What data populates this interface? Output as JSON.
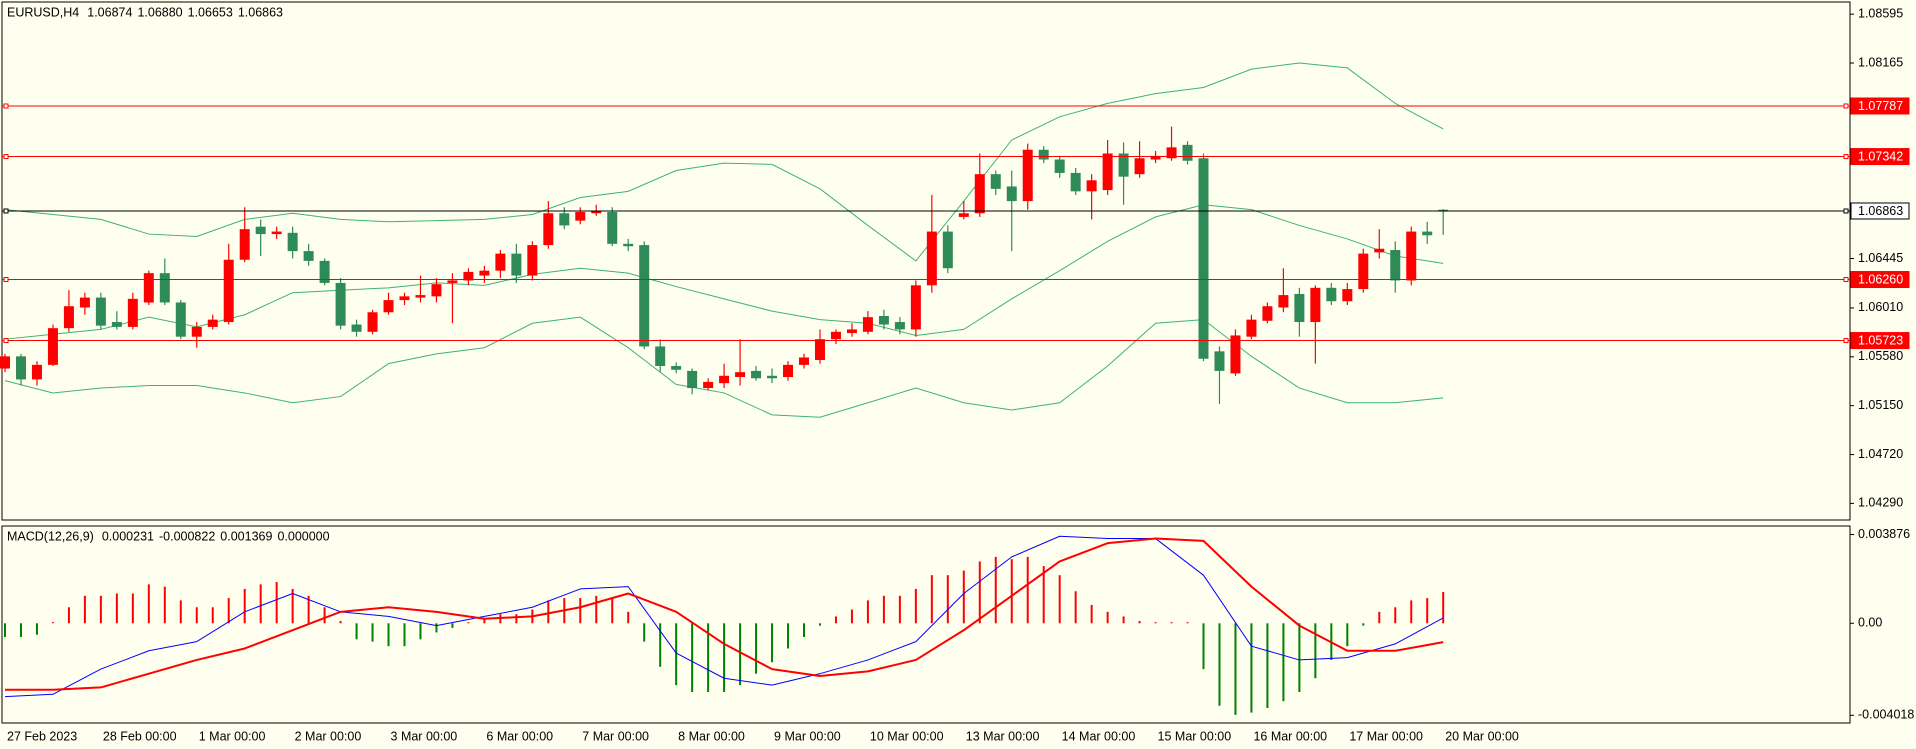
{
  "chart_data": [
    {
      "type": "candlestick",
      "title": "EURUSD,H4",
      "header_values": [
        "1.06874",
        "1.06880",
        "1.06653",
        "1.06863"
      ],
      "categories": [
        "27 Feb 2023",
        null,
        null,
        null,
        null,
        null,
        "28 Feb 00:00",
        null,
        null,
        null,
        null,
        null,
        "1 Mar 00:00",
        null,
        null,
        null,
        null,
        null,
        "2 Mar 00:00",
        null,
        null,
        null,
        null,
        null,
        "3 Mar 00:00",
        null,
        null,
        null,
        null,
        null,
        "6 Mar 00:00",
        null,
        null,
        null,
        null,
        null,
        "7 Mar 00:00",
        null,
        null,
        null,
        null,
        null,
        "8 Mar 00:00",
        null,
        null,
        null,
        null,
        null,
        "9 Mar 00:00",
        null,
        null,
        null,
        null,
        null,
        "10 Mar 00:00",
        null,
        null,
        null,
        null,
        null,
        "13 Mar 00:00",
        null,
        null,
        null,
        null,
        null,
        "14 Mar 00:00",
        null,
        null,
        null,
        null,
        null,
        "15 Mar 00:00",
        null,
        null,
        null,
        null,
        null,
        "16 Mar 00:00",
        null,
        null,
        null,
        null,
        null,
        "17 Mar 00:00",
        null,
        null,
        null,
        null,
        null,
        "20 Mar 00:00"
      ],
      "open": [
        1.05477,
        1.05584,
        1.05381,
        1.05509,
        1.05832,
        1.06014,
        1.06101,
        1.05886,
        1.05843,
        1.06058,
        1.06316,
        1.06058,
        1.05757,
        1.05843,
        1.05886,
        1.06434,
        1.06725,
        1.0666,
        1.06671,
        1.0651,
        1.06424,
        1.0623,
        1.05864,
        1.058,
        1.05972,
        1.06079,
        1.06101,
        1.06112,
        1.0623,
        1.06252,
        1.06295,
        1.06338,
        1.06488,
        1.06295,
        1.06563,
        1.06843,
        1.06778,
        1.06843,
        1.06854,
        1.06574,
        1.06563,
        1.05671,
        1.05499,
        1.05456,
        1.05305,
        1.05348,
        1.05402,
        1.05456,
        1.05413,
        1.05402,
        1.05509,
        1.05552,
        1.05735,
        1.05789,
        1.058,
        1.05939,
        1.05886,
        1.05821,
        1.06209,
        1.06682,
        1.06811,
        1.06843,
        1.07187,
        1.07079,
        1.0695,
        1.07402,
        1.07316,
        1.07198,
        1.07036,
        1.07047,
        1.07369,
        1.07187,
        1.07316,
        1.07327,
        1.07445,
        1.07327,
        1.05628,
        1.05434,
        1.05757,
        1.05897,
        1.06014,
        1.06133,
        1.05886,
        1.06187,
        1.06069,
        1.06176,
        1.06499,
        1.0652,
        1.06252,
        1.06682,
        1.06874
      ],
      "high": [
        1.05606,
        1.05606,
        1.05542,
        1.05864,
        1.06166,
        1.06144,
        1.06144,
        1.05982,
        1.06144,
        1.06338,
        1.06445,
        1.06079,
        1.05886,
        1.0595,
        1.06574,
        1.06896,
        1.06789,
        1.06725,
        1.06725,
        1.06574,
        1.06445,
        1.06273,
        1.05907,
        1.05993,
        1.06144,
        1.06144,
        1.06295,
        1.06273,
        1.06316,
        1.06359,
        1.06381,
        1.0652,
        1.06574,
        1.06596,
        1.0695,
        1.06896,
        1.06896,
        1.06918,
        1.06896,
        1.06617,
        1.06596,
        1.05735,
        1.05531,
        1.05477,
        1.05391,
        1.0552,
        1.05735,
        1.05499,
        1.05477,
        1.05542,
        1.05606,
        1.05821,
        1.05821,
        1.05875,
        1.05982,
        1.05993,
        1.05929,
        1.06252,
        1.07004,
        1.06736,
        1.0695,
        1.07369,
        1.07219,
        1.07219,
        1.07456,
        1.07434,
        1.07348,
        1.07241,
        1.07187,
        1.07488,
        1.07466,
        1.07477,
        1.07391,
        1.07606,
        1.07477,
        1.07369,
        1.05671,
        1.05821,
        1.0595,
        1.06058,
        1.06359,
        1.06187,
        1.06209,
        1.0623,
        1.0623,
        1.06531,
        1.06703,
        1.06596,
        1.06725,
        1.06768,
        1.0688
      ],
      "low": [
        1.05445,
        1.05327,
        1.05327,
        1.05499,
        1.058,
        1.0595,
        1.05821,
        1.05821,
        1.05821,
        1.06036,
        1.06036,
        1.05735,
        1.0566,
        1.05821,
        1.05864,
        1.06413,
        1.06467,
        1.06617,
        1.06445,
        1.06381,
        1.06209,
        1.05821,
        1.05757,
        1.05778,
        1.0595,
        1.06036,
        1.06058,
        1.06058,
        1.05875,
        1.06209,
        1.0623,
        1.06273,
        1.0623,
        1.06252,
        1.06531,
        1.06703,
        1.06746,
        1.06821,
        1.06553,
        1.0651,
        1.05649,
        1.05445,
        1.05434,
        1.05251,
        1.05284,
        1.05305,
        1.05327,
        1.0537,
        1.05348,
        1.0537,
        1.05477,
        1.0552,
        1.05692,
        1.05757,
        1.05778,
        1.05821,
        1.05778,
        1.05757,
        1.06144,
        1.06316,
        1.06789,
        1.06811,
        1.07004,
        1.0651,
        1.06875,
        1.07284,
        1.07155,
        1.07004,
        1.06789,
        1.07004,
        1.06918,
        1.07155,
        1.07284,
        1.07305,
        1.07273,
        1.05542,
        1.05166,
        1.05413,
        1.05735,
        1.05875,
        1.05972,
        1.05757,
        1.0552,
        1.06036,
        1.06036,
        1.06144,
        1.06445,
        1.06144,
        1.06209,
        1.06574,
        1.06653
      ],
      "close": [
        1.05584,
        1.05381,
        1.05509,
        1.05832,
        1.06025,
        1.06101,
        1.05854,
        1.05843,
        1.0609,
        1.06316,
        1.06058,
        1.05757,
        1.05843,
        1.05907,
        1.06434,
        1.06703,
        1.0666,
        1.06682,
        1.0651,
        1.06424,
        1.0623,
        1.05854,
        1.058,
        1.05972,
        1.06079,
        1.06112,
        1.06123,
        1.06219,
        1.06252,
        1.06327,
        1.06338,
        1.06488,
        1.06295,
        1.06563,
        1.06843,
        1.06736,
        1.06854,
        1.06864,
        1.06574,
        1.06553,
        1.05671,
        1.05499,
        1.05466,
        1.05305,
        1.05359,
        1.05413,
        1.05445,
        1.05391,
        1.05391,
        1.05509,
        1.05574,
        1.05735,
        1.058,
        1.05821,
        1.05929,
        1.05864,
        1.05821,
        1.06209,
        1.06682,
        1.06359,
        1.06843,
        1.07187,
        1.07058,
        1.0695,
        1.07402,
        1.07316,
        1.07198,
        1.07036,
        1.07133,
        1.07369,
        1.07165,
        1.07327,
        1.07348,
        1.07423,
        1.07305,
        1.05563,
        1.05456,
        1.05768,
        1.05907,
        1.06025,
        1.06123,
        1.05886,
        1.06187,
        1.06069,
        1.06176,
        1.06488,
        1.06531,
        1.06252,
        1.06682,
        1.06649,
        1.06863
      ],
      "up_color": "#ff0000",
      "down_color": "#2e8b57",
      "bands": {
        "x": [
          0,
          3,
          6,
          9,
          12,
          15,
          18,
          21,
          24,
          27,
          30,
          33,
          36,
          39,
          42,
          45,
          48,
          51,
          54,
          57,
          60,
          63,
          66,
          69,
          72,
          75,
          78,
          81,
          84,
          87,
          90
        ],
        "series": [
          {
            "color": "#3cb371",
            "values": [
              1.06875,
              1.06832,
              1.06789,
              1.0666,
              1.06639,
              1.06789,
              1.06843,
              1.06789,
              1.06768,
              1.06778,
              1.06789,
              1.06832,
              1.06982,
              1.07036,
              1.07219,
              1.07284,
              1.07273,
              1.07058,
              1.06736,
              1.06424,
              1.0695,
              1.07488,
              1.07692,
              1.0781,
              1.07896,
              1.0795,
              1.08111,
              1.08165,
              1.08122,
              1.0781,
              1.07585
            ]
          },
          {
            "color": "#3cb371",
            "values": [
              1.05735,
              1.05778,
              1.05821,
              1.05929,
              1.05843,
              1.0595,
              1.06144,
              1.06166,
              1.06187,
              1.0623,
              1.06209,
              1.06305,
              1.06359,
              1.06316,
              1.06198,
              1.0609,
              1.05982,
              1.05907,
              1.05875,
              1.05768,
              1.05821,
              1.0609,
              1.06338,
              1.06596,
              1.06811,
              1.06918,
              1.06875,
              1.06736,
              1.06617,
              1.06467,
              1.06402
            ]
          },
          {
            "color": "#3cb371",
            "values": [
              1.0537,
              1.05262,
              1.05305,
              1.05327,
              1.05327,
              1.05262,
              1.05176,
              1.0523,
              1.0552,
              1.05606,
              1.0566,
              1.05875,
              1.05929,
              1.0566,
              1.05337,
              1.05262,
              1.05069,
              1.05048,
              1.05176,
              1.05305,
              1.05176,
              1.05112,
              1.05176,
              1.05499,
              1.05875,
              1.05907,
              1.05584,
              1.05305,
              1.05176,
              1.05176,
              1.05219
            ]
          }
        ]
      },
      "hlines": [
        {
          "value": 1.07787,
          "color": "#ff0000",
          "label_fill": "#ff0000",
          "text_color": "#ffffff"
        },
        {
          "value": 1.07342,
          "color": "#ff0000",
          "label_fill": "#ff0000",
          "text_color": "#ffffff"
        },
        {
          "value": 1.06863,
          "color": "#000000",
          "label_fill": "#ffffff",
          "text_color": "#000000"
        },
        {
          "value": 1.0626,
          "label": "1.06260",
          "color": "#ff0000",
          "label_fill": "#ff0000",
          "text_color": "#ffffff"
        },
        {
          "value": 1.05723,
          "color": "#ff0000",
          "label_fill": "#ff0000",
          "text_color": "#ffffff"
        }
      ],
      "ylim": [
        1.04144,
        1.08702
      ],
      "yticks": [
        1.08595,
        1.08165,
        1.06445,
        {
          "value": 1.0601,
          "label": "1.06010"
        },
        {
          "value": 1.0558,
          "label": "1.05580"
        },
        {
          "value": 1.0515,
          "label": "1.05150"
        },
        {
          "value": 1.0472,
          "label": "1.04720"
        },
        {
          "value": 1.0429,
          "label": "1.04290"
        }
      ]
    },
    {
      "type": "macd",
      "title": "MACD(12,26,9)",
      "header_values": [
        "0.000231",
        "-0.000822",
        "0.001369",
        "0.000000"
      ],
      "histogram": {
        "up_color": "#ff0000",
        "down_color": "#008000",
        "values": [
          -0.0006,
          -0.0006,
          -0.0005,
          5e-05,
          0.0007,
          0.0012,
          0.0012,
          0.0013,
          0.0013,
          0.0017,
          0.0016,
          0.001,
          0.0007,
          0.0007,
          0.0011,
          0.0015,
          0.0017,
          0.0018,
          0.0015,
          0.0012,
          0.0007,
          0.0001,
          -0.0007,
          -0.0008,
          -0.001,
          -0.001,
          -0.0007,
          -0.0004,
          -0.0002,
          5e-05,
          0.0002,
          0.0004,
          0.0004,
          0.0006,
          0.001,
          0.0011,
          0.0011,
          0.0012,
          0.0011,
          0.0005,
          -0.0008,
          -0.0019,
          -0.0027,
          -0.003,
          -0.003,
          -0.003,
          -0.0027,
          -0.0022,
          -0.0017,
          -0.0011,
          -0.0006,
          -0.0001,
          0.0003,
          0.0006,
          0.001,
          0.0012,
          0.0012,
          0.0015,
          0.0021,
          0.0021,
          0.0023,
          0.0027,
          0.0029,
          0.0028,
          0.0029,
          0.0025,
          0.0021,
          0.0014,
          0.0008,
          0.0005,
          0.0003,
          0.0001,
          5e-05,
          5e-05,
          5e-05,
          -0.002,
          -0.0036,
          -0.004,
          -0.0039,
          -0.0037,
          -0.0034,
          -0.003,
          -0.0024,
          -0.0016,
          -0.001,
          -0.0001,
          0.0005,
          0.0007,
          0.001,
          0.0011,
          0.001369
        ]
      },
      "lines": {
        "x": [
          0,
          3,
          6,
          9,
          12,
          15,
          18,
          21,
          24,
          27,
          30,
          33,
          36,
          39,
          42,
          45,
          48,
          51,
          54,
          57,
          60,
          63,
          66,
          69,
          72,
          75,
          78,
          81,
          84,
          87,
          90
        ],
        "series": [
          {
            "color": "#0000ff",
            "width": 1,
            "values": [
              -0.0032,
              -0.0031,
              -0.002,
              -0.0012,
              -0.0008,
              0.0005,
              0.0013,
              0.0005,
              0.0003,
              -0.0001,
              0.0003,
              0.0007,
              0.0015,
              0.0016,
              -0.0013,
              -0.0024,
              -0.0027,
              -0.0022,
              -0.0016,
              -0.0008,
              0.0013,
              0.0029,
              0.0038,
              0.0037,
              0.0037,
              0.0021,
              -0.001,
              -0.0016,
              -0.0015,
              -0.0009,
              0.000231
            ]
          },
          {
            "color": "#ff0000",
            "width": 2,
            "values": [
              -0.0029,
              -0.0029,
              -0.0028,
              -0.0022,
              -0.0016,
              -0.0011,
              -0.0003,
              0.0005,
              0.0007,
              0.0005,
              0.0002,
              0.0003,
              0.0007,
              0.0013,
              0.0005,
              -0.0009,
              -0.002,
              -0.0023,
              -0.0021,
              -0.0016,
              -0.0003,
              0.0012,
              0.0027,
              0.0035,
              0.0037,
              0.0036,
              0.0016,
              -0.0001,
              -0.0012,
              -0.0012,
              -0.000822
            ]
          }
        ]
      },
      "ylim": [
        -0.004354,
        0.004248
      ],
      "yticks": [
        0.003876,
        {
          "value": 0,
          "label": "0.00"
        },
        -0.004018
      ]
    }
  ]
}
